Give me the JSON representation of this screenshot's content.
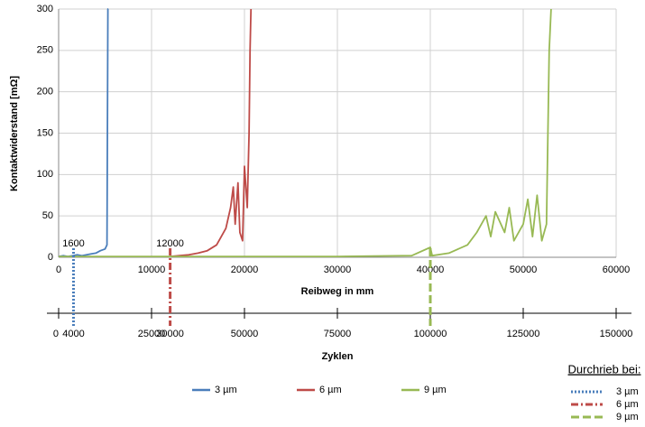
{
  "chart_data": {
    "type": "line",
    "ylabel": "Kontaktwiderstand [mΩ]",
    "xlabel": "Reibweg in mm",
    "x2label": "Zyklen",
    "xlim": [
      0,
      60000
    ],
    "xticks": [
      0,
      10000,
      20000,
      30000,
      40000,
      50000,
      60000
    ],
    "ylim": [
      0,
      300
    ],
    "yticks": [
      0,
      50,
      100,
      150,
      200,
      250,
      300
    ],
    "x2lim": [
      0,
      150000
    ],
    "x2ticks": [
      0,
      25000,
      50000,
      75000,
      100000,
      125000,
      150000
    ],
    "grid": true,
    "series": [
      {
        "name": "3 µm",
        "color": "#4a7ebb",
        "x": [
          0,
          500,
          1000,
          1500,
          2000,
          2500,
          3000,
          3500,
          4000,
          4500,
          5000,
          5200,
          5300,
          5350
        ],
        "values": [
          1,
          2,
          1,
          2,
          3,
          2,
          3,
          4,
          5,
          8,
          10,
          15,
          300,
          300
        ]
      },
      {
        "name": "6 µm",
        "color": "#be4b48",
        "x": [
          12000,
          13000,
          14000,
          15000,
          16000,
          17000,
          17500,
          18000,
          18500,
          18800,
          19000,
          19300,
          19500,
          19800,
          20000,
          20300,
          20500,
          20600,
          20700
        ],
        "values": [
          1,
          2,
          3,
          5,
          8,
          15,
          25,
          35,
          60,
          85,
          40,
          90,
          30,
          20,
          110,
          60,
          150,
          250,
          300
        ]
      },
      {
        "name": "9 µm",
        "color": "#98b954",
        "x": [
          0,
          10000,
          20000,
          30000,
          38000,
          40000,
          40200,
          42000,
          44000,
          45000,
          46000,
          46500,
          47000,
          48000,
          48500,
          49000,
          50000,
          50500,
          51000,
          51500,
          52000,
          52500,
          52800,
          53000
        ],
        "values": [
          1,
          1,
          1,
          1,
          2,
          12,
          2,
          5,
          15,
          30,
          50,
          25,
          55,
          30,
          60,
          20,
          40,
          70,
          25,
          75,
          20,
          40,
          250,
          300
        ]
      }
    ],
    "markers_title": "Durchrieb bei:",
    "markers": [
      {
        "name": "3 µm",
        "x": 1600,
        "label": "1600",
        "cycles": 4000,
        "color": "#4a7ebb",
        "dash": "dotted"
      },
      {
        "name": "6 µm",
        "x": 12000,
        "label": "12000",
        "cycles": 30000,
        "color": "#be4b48",
        "dash": "dashdot"
      },
      {
        "name": "9 µm",
        "x": 40000,
        "color": "#98b954",
        "dash": "dashed"
      }
    ]
  }
}
